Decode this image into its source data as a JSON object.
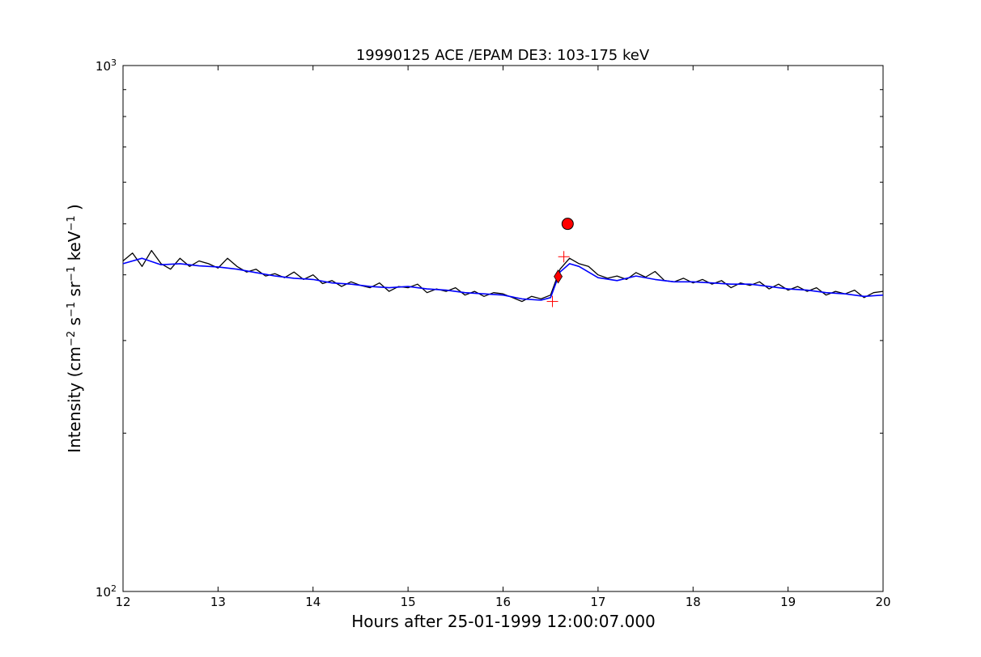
{
  "chart_data": {
    "type": "line",
    "title": "19990125 ACE /EPAM DE3: 103-175 keV",
    "xlabel": "Hours after 25-01-1999 12:00:07.000",
    "ylabel": {
      "prefix": "Intensity (cm",
      "exp1": "−2",
      "mid1": " s",
      "exp2": "−1",
      "mid2": " sr",
      "exp3": "−1",
      "mid3": " keV",
      "exp4": "−1",
      "suffix": " )"
    },
    "xlim": [
      12,
      20
    ],
    "ylim": [
      100,
      1000
    ],
    "yscale": "log",
    "x_ticks": [
      "12",
      "13",
      "14",
      "15",
      "16",
      "17",
      "18",
      "19",
      "20"
    ],
    "y_ticks": [
      {
        "base": "10",
        "exp": "3"
      },
      {
        "base": "10",
        "exp": "2"
      }
    ],
    "grid": false,
    "series": [
      {
        "color": "#000000",
        "x": [
          12.0,
          12.1,
          12.2,
          12.3,
          12.4,
          12.5,
          12.6,
          12.7,
          12.8,
          12.9,
          13.0,
          13.1,
          13.2,
          13.3,
          13.4,
          13.5,
          13.6,
          13.7,
          13.8,
          13.9,
          14.0,
          14.1,
          14.2,
          14.3,
          14.4,
          14.5,
          14.6,
          14.7,
          14.8,
          14.9,
          15.0,
          15.1,
          15.2,
          15.3,
          15.4,
          15.5,
          15.6,
          15.7,
          15.8,
          15.9,
          16.0,
          16.1,
          16.2,
          16.3,
          16.4,
          16.5,
          16.6,
          16.7,
          16.8,
          16.9,
          17.0,
          17.1,
          17.2,
          17.3,
          17.4,
          17.5,
          17.6,
          17.7,
          17.8,
          17.9,
          18.0,
          18.1,
          18.2,
          18.3,
          18.4,
          18.5,
          18.6,
          18.7,
          18.8,
          18.9,
          19.0,
          19.1,
          19.2,
          19.3,
          19.4,
          19.5,
          19.6,
          19.7,
          19.8,
          19.9,
          20.0
        ],
        "values": [
          425,
          440,
          415,
          445,
          420,
          410,
          430,
          415,
          425,
          420,
          412,
          430,
          415,
          405,
          410,
          398,
          402,
          395,
          405,
          392,
          400,
          385,
          390,
          380,
          388,
          382,
          378,
          386,
          372,
          380,
          378,
          384,
          370,
          376,
          372,
          378,
          366,
          372,
          364,
          370,
          368,
          362,
          356,
          364,
          360,
          366,
          410,
          430,
          420,
          415,
          400,
          394,
          398,
          392,
          404,
          396,
          406,
          390,
          388,
          394,
          386,
          392,
          384,
          390,
          378,
          386,
          382,
          388,
          376,
          384,
          374,
          380,
          372,
          378,
          366,
          372,
          368,
          374,
          362,
          370,
          372
        ]
      },
      {
        "color": "#0000ff",
        "x": [
          12.0,
          12.2,
          12.4,
          12.6,
          12.8,
          13.0,
          13.2,
          13.4,
          13.6,
          13.8,
          14.0,
          14.2,
          14.4,
          14.6,
          14.8,
          15.0,
          15.2,
          15.4,
          15.6,
          15.8,
          16.0,
          16.2,
          16.4,
          16.5,
          16.6,
          16.7,
          16.8,
          17.0,
          17.2,
          17.4,
          17.6,
          17.8,
          18.0,
          18.2,
          18.4,
          18.6,
          18.8,
          19.0,
          19.2,
          19.4,
          19.6,
          19.8,
          20.0
        ],
        "values": [
          420,
          430,
          418,
          420,
          416,
          414,
          410,
          404,
          398,
          394,
          392,
          386,
          384,
          380,
          378,
          380,
          376,
          374,
          370,
          368,
          366,
          360,
          358,
          362,
          405,
          420,
          415,
          395,
          390,
          398,
          392,
          388,
          388,
          386,
          384,
          384,
          380,
          376,
          374,
          370,
          368,
          364,
          366
        ]
      }
    ],
    "markers": [
      {
        "shape": "circle",
        "color": "#ff0000",
        "x": 16.68,
        "y": 500
      },
      {
        "shape": "diamond",
        "color": "#ff0000",
        "x": 16.58,
        "y": 397
      },
      {
        "shape": "plus",
        "color": "#ff0000",
        "x": 16.52,
        "y": 356
      },
      {
        "shape": "plus",
        "color": "#ff0000",
        "x": 16.64,
        "y": 433
      }
    ]
  }
}
